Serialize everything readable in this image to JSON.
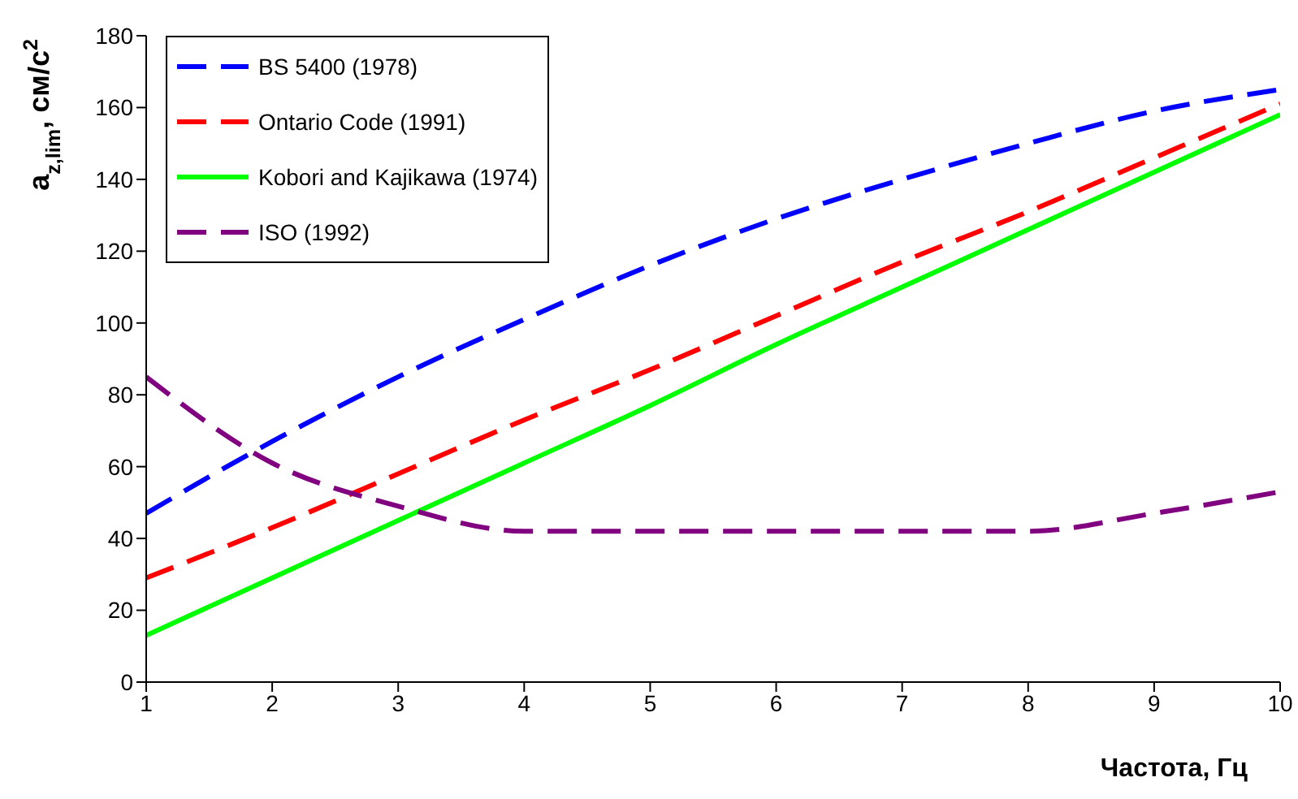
{
  "chart_data": {
    "type": "line",
    "xlabel": "Частота, Гц",
    "ylabel": "a$_{z,lim}$, см/с$^{2}$",
    "x": [
      1,
      2,
      3,
      4,
      5,
      6,
      7,
      8,
      9,
      10
    ],
    "series": [
      {
        "name": "BS 5400 (1978)",
        "color": "#0000ff",
        "line_style": "dashed",
        "values": [
          47,
          67,
          85,
          101,
          116,
          129,
          140,
          150,
          159,
          165
        ]
      },
      {
        "name": "Ontario Code (1991)",
        "color": "#ff0000",
        "line_style": "dashed",
        "values": [
          29,
          43,
          58,
          73,
          87,
          102,
          117,
          131,
          146,
          161
        ]
      },
      {
        "name": "Kobori and Kajikawa (1974)",
        "color": "#00ff00",
        "line_style": "solid",
        "values": [
          13,
          29,
          45,
          61,
          77,
          94,
          110,
          126,
          142,
          158
        ]
      },
      {
        "name": "ISO (1992)",
        "color": "#800080",
        "line_style": "dashed",
        "values": [
          85,
          61,
          49,
          42,
          42,
          42,
          42,
          42,
          47,
          53
        ]
      }
    ],
    "xlim": [
      1,
      10
    ],
    "xticks": [
      1,
      2,
      3,
      4,
      5,
      6,
      7,
      8,
      9,
      10
    ],
    "ylim": [
      0,
      180
    ],
    "yticks": [
      0,
      20,
      40,
      60,
      80,
      100,
      120,
      140,
      160,
      180
    ],
    "grid": false,
    "legend": "top left",
    "marker": "none"
  }
}
